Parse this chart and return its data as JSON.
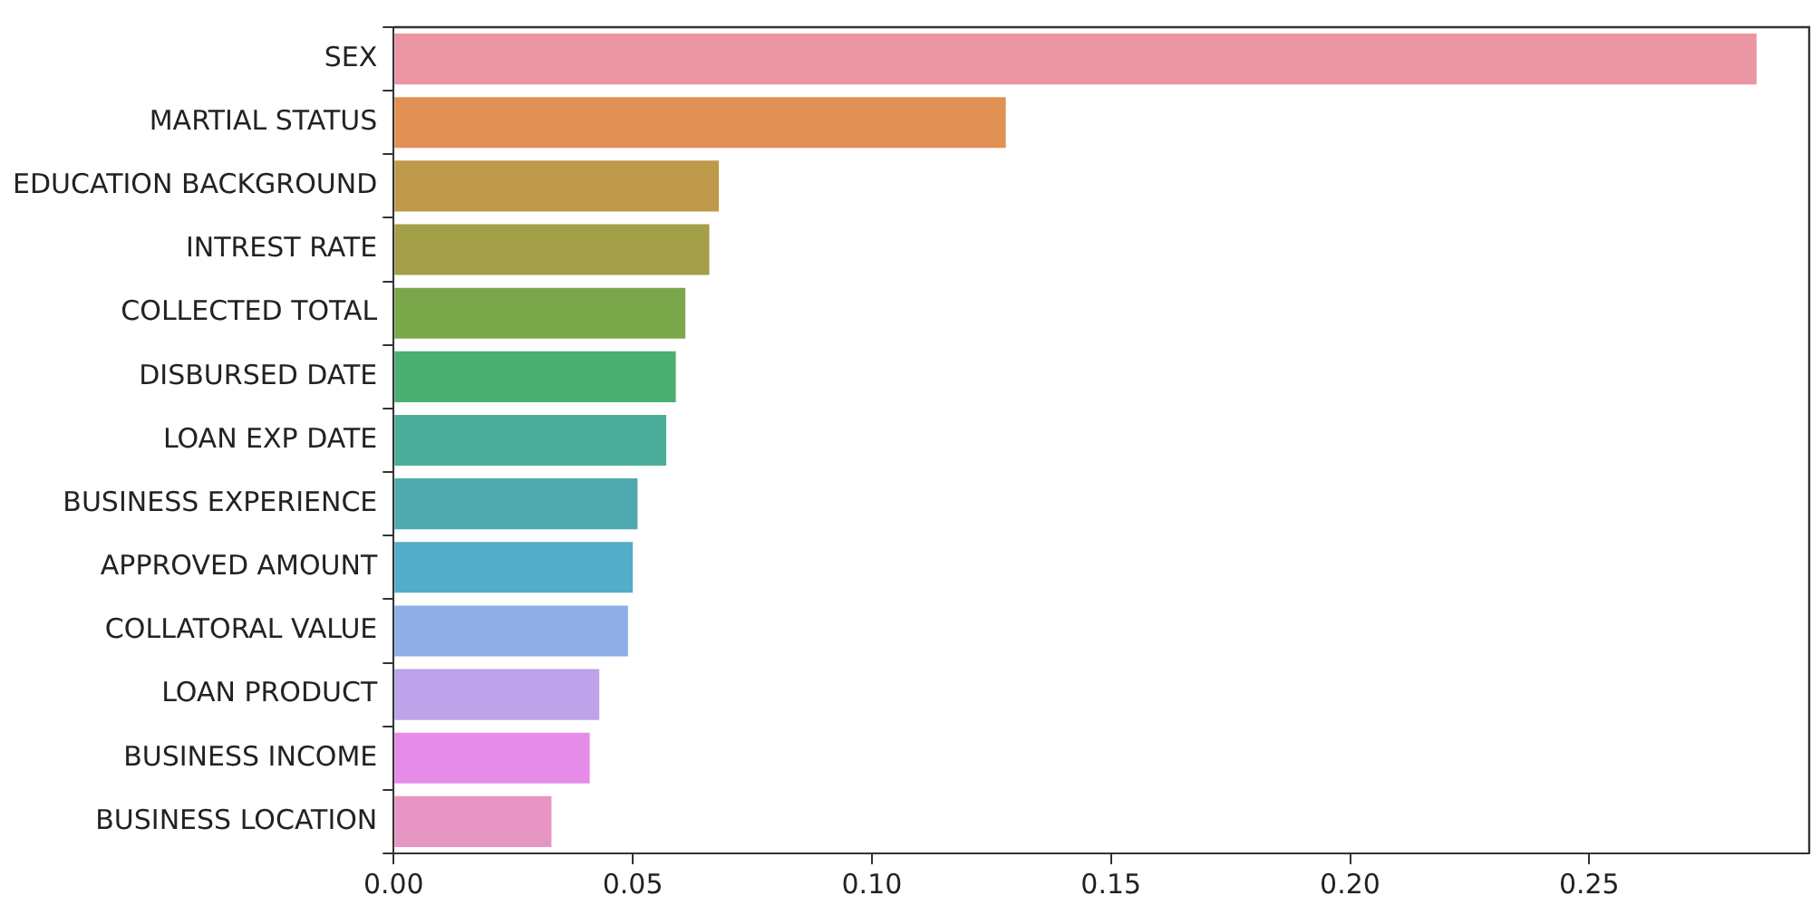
{
  "chart_data": {
    "type": "bar",
    "orientation": "horizontal",
    "categories": [
      "SEX",
      "MARTIAL STATUS",
      "EDUCATION BACKGROUND",
      "INTREST RATE",
      "COLLECTED TOTAL",
      "DISBURSED DATE",
      "LOAN EXP DATE",
      "BUSINESS EXPERIENCE",
      "APPROVED AMOUNT",
      "COLLATORAL VALUE",
      "LOAN PRODUCT",
      "BUSINESS INCOME",
      "BUSINESS LOCATION"
    ],
    "values": [
      0.285,
      0.128,
      0.068,
      0.066,
      0.061,
      0.059,
      0.057,
      0.051,
      0.05,
      0.049,
      0.043,
      0.041,
      0.033
    ],
    "colors": [
      "#ea96a3",
      "#e19153",
      "#bf9a4a",
      "#a39e48",
      "#7ba74b",
      "#4bae72",
      "#4cad9a",
      "#4faab0",
      "#53acc9",
      "#8faee8",
      "#bea2ea",
      "#e68be8",
      "#e795c2"
    ],
    "xlim": [
      0,
      0.296
    ],
    "xticks": [
      {
        "value": 0,
        "label": "0.00"
      },
      {
        "value": 0.05,
        "label": "0.05"
      },
      {
        "value": 0.1,
        "label": "0.10"
      },
      {
        "value": 0.15,
        "label": "0.15"
      },
      {
        "value": 0.2,
        "label": "0.20"
      },
      {
        "value": 0.25,
        "label": "0.25"
      }
    ],
    "grid": false,
    "legend": false
  }
}
